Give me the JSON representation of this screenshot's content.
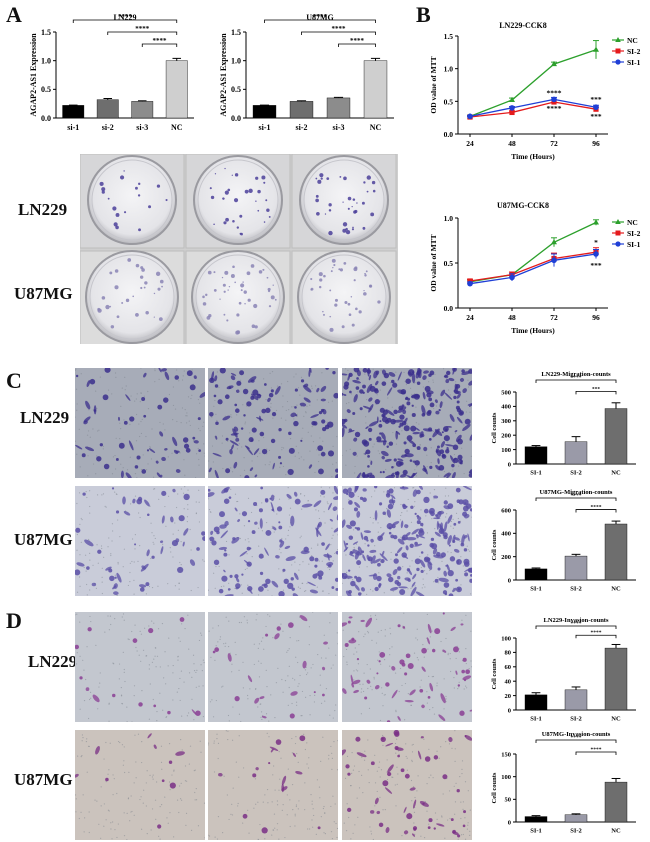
{
  "panels": {
    "a": {
      "letter": "A"
    },
    "b": {
      "letter": "B"
    },
    "c": {
      "letter": "C"
    },
    "d": {
      "letter": "D"
    }
  },
  "row_labels": {
    "plates_top": "LN229",
    "plates_bottom": "U87MG",
    "c_top": "LN229",
    "c_bottom": "U87MG",
    "d_top": "LN229",
    "d_bottom": "U87MG"
  },
  "colors": {
    "nc": "#2ca02c",
    "si2": "#e41a1c",
    "si1": "#1f3fd6"
  },
  "chart_data": [
    {
      "id": "a-ln229",
      "type": "bar",
      "title": "LN229",
      "ylabel": "AGAP2-AS1 Expression",
      "categories": [
        "si-1",
        "si-2",
        "si-3",
        "NC"
      ],
      "values": [
        0.22,
        0.32,
        0.29,
        1.0
      ],
      "errors": [
        0.005,
        0.02,
        0.01,
        0.04
      ],
      "ylim": [
        0,
        1.5
      ],
      "yticks": [
        "0.0",
        "0.5",
        "1.0",
        "1.5"
      ],
      "colors": [
        "#000000",
        "#6e6e6e",
        "#8c8c8c",
        "#cfcfcf"
      ],
      "sig": [
        "****",
        "****",
        "****"
      ]
    },
    {
      "id": "a-u87mg",
      "type": "bar",
      "title": "U87MG",
      "ylabel": "AGAP2-AS1 Expression",
      "categories": [
        "si-1",
        "si-2",
        "si-3",
        "NC"
      ],
      "values": [
        0.22,
        0.29,
        0.35,
        1.0
      ],
      "errors": [
        0.005,
        0.01,
        0.01,
        0.04
      ],
      "ylim": [
        0,
        1.5
      ],
      "yticks": [
        "0.0",
        "0.5",
        "1.0",
        "1.5"
      ],
      "colors": [
        "#000000",
        "#6e6e6e",
        "#8c8c8c",
        "#cfcfcf"
      ],
      "sig": [
        "****",
        "****",
        "****"
      ]
    },
    {
      "id": "b-ln229",
      "type": "line",
      "title": "LN229-CCK8",
      "xlabel": "Time (Hours)",
      "ylabel": "OD value of MTT",
      "x": [
        24,
        48,
        72,
        96
      ],
      "ylim": [
        0,
        1.5
      ],
      "yticks": [
        "0.0",
        "0.5",
        "1.0",
        "1.5"
      ],
      "legend": "top-right",
      "series": [
        {
          "name": "NC",
          "values": [
            0.27,
            0.52,
            1.07,
            1.29
          ],
          "errors": [
            0.02,
            0.03,
            0.03,
            0.14
          ]
        },
        {
          "name": "SI-2",
          "values": [
            0.26,
            0.33,
            0.49,
            0.38
          ],
          "errors": [
            0.01,
            0.02,
            0.03,
            0.03
          ]
        },
        {
          "name": "SI-1",
          "values": [
            0.27,
            0.4,
            0.53,
            0.41
          ],
          "errors": [
            0.01,
            0.02,
            0.03,
            0.03
          ]
        }
      ],
      "annotations": [
        "****",
        "****",
        "***",
        "***"
      ]
    },
    {
      "id": "b-u87mg",
      "type": "line",
      "title": "U87MG-CCK8",
      "xlabel": "Time (Hours)",
      "ylabel": "OD value of MTT",
      "x": [
        24,
        48,
        72,
        96
      ],
      "ylim": [
        0,
        1.0
      ],
      "yticks": [
        "0.0",
        "0.5",
        "1.0"
      ],
      "legend": "top-right",
      "series": [
        {
          "name": "NC",
          "values": [
            0.29,
            0.37,
            0.73,
            0.95
          ],
          "errors": [
            0.02,
            0.03,
            0.05,
            0.03
          ]
        },
        {
          "name": "SI-2",
          "values": [
            0.3,
            0.37,
            0.55,
            0.62
          ],
          "errors": [
            0.02,
            0.03,
            0.06,
            0.05
          ]
        },
        {
          "name": "SI-1",
          "values": [
            0.27,
            0.34,
            0.53,
            0.6
          ],
          "errors": [
            0.02,
            0.04,
            0.07,
            0.05
          ]
        }
      ],
      "annotations": [
        "*",
        "***"
      ]
    },
    {
      "id": "c-ln229",
      "type": "bar",
      "title": "LN229-Migration-counts",
      "ylabel": "Cell counts",
      "categories": [
        "SI-1",
        "SI-2",
        "NC"
      ],
      "values": [
        120,
        155,
        385
      ],
      "errors": [
        8,
        35,
        40
      ],
      "ylim": [
        0,
        500
      ],
      "yticks": [
        "0",
        "100",
        "200",
        "300",
        "400",
        "500"
      ],
      "colors": [
        "#000000",
        "#9a9aa8",
        "#6e6e6e"
      ],
      "sig": [
        "****",
        "***"
      ]
    },
    {
      "id": "c-u87mg",
      "type": "bar",
      "title": "U87MG-Migration-counts",
      "ylabel": "Cell counts",
      "categories": [
        "SI-1",
        "SI-2",
        "NC"
      ],
      "values": [
        95,
        205,
        480
      ],
      "errors": [
        8,
        15,
        25
      ],
      "ylim": [
        0,
        600
      ],
      "yticks": [
        "0",
        "200",
        "400",
        "600"
      ],
      "colors": [
        "#000000",
        "#9a9aa8",
        "#6e6e6e"
      ],
      "sig": [
        "****",
        "****"
      ]
    },
    {
      "id": "d-ln229",
      "type": "bar",
      "title": "LN229-Invasion-counts",
      "ylabel": "Cell counts",
      "categories": [
        "SI-1",
        "SI-2",
        "NC"
      ],
      "values": [
        21,
        28,
        86
      ],
      "errors": [
        3,
        4,
        5
      ],
      "ylim": [
        0,
        100
      ],
      "yticks": [
        "0",
        "20",
        "40",
        "60",
        "80",
        "100"
      ],
      "colors": [
        "#000000",
        "#9a9aa8",
        "#6e6e6e"
      ],
      "sig": [
        "****",
        "****"
      ]
    },
    {
      "id": "d-u87mg",
      "type": "bar",
      "title": "U87MG-Invasion-counts",
      "ylabel": "Cell counts",
      "categories": [
        "SI-1",
        "SI-2",
        "NC"
      ],
      "values": [
        12,
        16,
        88
      ],
      "errors": [
        2,
        2,
        8
      ],
      "ylim": [
        0,
        150
      ],
      "yticks": [
        "0",
        "50",
        "100",
        "150"
      ],
      "colors": [
        "#000000",
        "#9a9aa8",
        "#6e6e6e"
      ],
      "sig": [
        "****",
        "****"
      ]
    }
  ]
}
